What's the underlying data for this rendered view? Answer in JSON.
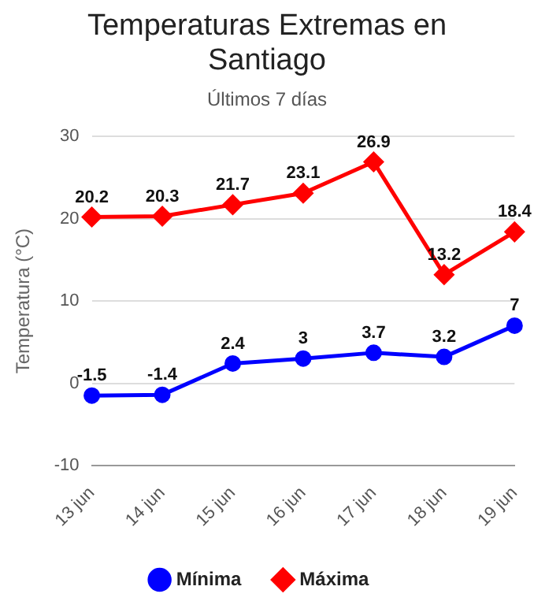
{
  "chart_data": {
    "type": "line",
    "title": "Temperaturas Extremas en Santiago",
    "subtitle": "Últimos 7 días",
    "ylabel": "Temperatura (°C)",
    "categories": [
      "13 jun",
      "14 jun",
      "15 jun",
      "16 jun",
      "17 jun",
      "18 jun",
      "19 jun"
    ],
    "series": [
      {
        "name": "Mínima",
        "color": "#0000ff",
        "marker": "circle",
        "values": [
          -1.5,
          -1.4,
          2.4,
          3,
          3.7,
          3.2,
          7
        ]
      },
      {
        "name": "Máxima",
        "color": "#ff0000",
        "marker": "diamond",
        "values": [
          20.2,
          20.3,
          21.7,
          23.1,
          26.9,
          13.2,
          18.4
        ]
      }
    ],
    "ylim": [
      -10,
      30
    ],
    "yticks": [
      -10,
      0,
      10,
      20,
      30
    ],
    "grid": "y",
    "legend": "bottom",
    "data_labels": true,
    "line_style": "solid"
  }
}
